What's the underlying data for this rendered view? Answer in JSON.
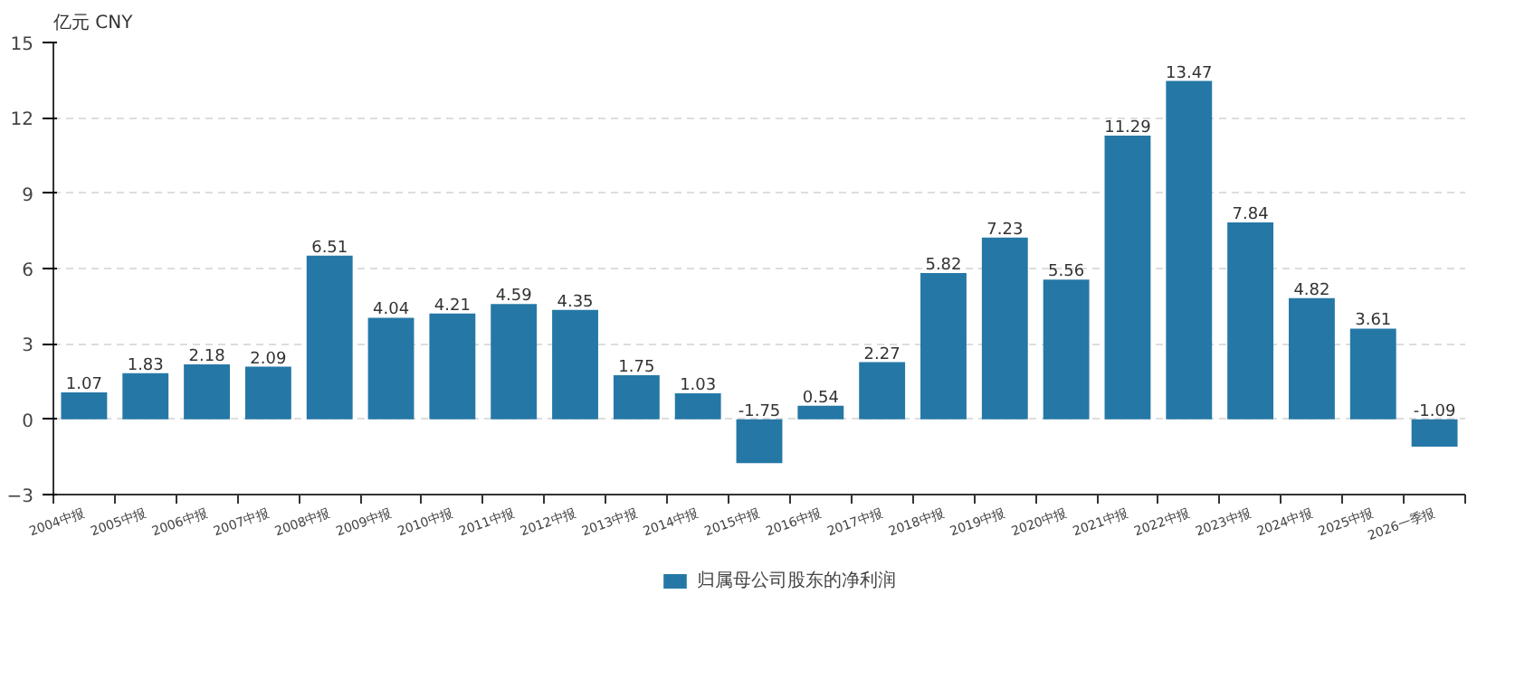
{
  "chart_data": {
    "type": "bar",
    "ylabel": "亿元  CNY",
    "categories": [
      "2004中报",
      "2005中报",
      "2006中报",
      "2007中报",
      "2008中报",
      "2009中报",
      "2010中报",
      "2011中报",
      "2012中报",
      "2013中报",
      "2014中报",
      "2015中报",
      "2016中报",
      "2017中报",
      "2018中报",
      "2019中报",
      "2020中报",
      "2021中报",
      "2022中报",
      "2023中报",
      "2024中报",
      "2025中报",
      "2026一季报"
    ],
    "series": [
      {
        "name": "归属母公司股东的净利润",
        "color": "#2578a6",
        "values": [
          1.07,
          1.83,
          2.18,
          2.09,
          6.51,
          4.04,
          4.21,
          4.59,
          4.35,
          1.75,
          1.03,
          -1.75,
          0.54,
          2.27,
          5.82,
          7.23,
          5.56,
          11.29,
          13.47,
          7.84,
          4.82,
          3.61,
          -1.09
        ]
      }
    ],
    "ylim": [
      -3,
      15
    ],
    "yticks": [
      -3,
      0,
      3,
      6,
      9,
      12,
      15
    ],
    "grid": "y",
    "legend": "bottom",
    "data_labels": true
  }
}
